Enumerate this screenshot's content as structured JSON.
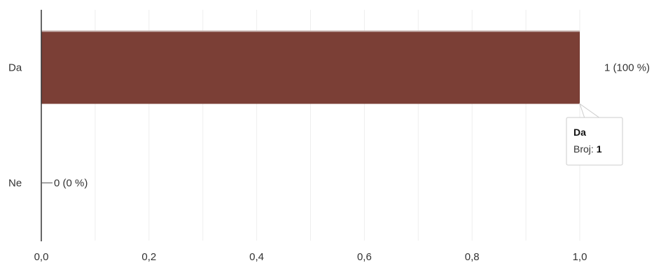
{
  "chart_data": {
    "type": "bar",
    "orientation": "horizontal",
    "categories": [
      "Da",
      "Ne"
    ],
    "values": [
      1,
      0
    ],
    "data_labels": [
      "1 (100 %)",
      "0 (0 %)"
    ],
    "xlim": [
      0,
      1
    ],
    "x_ticks": [
      0,
      0.2,
      0.4,
      0.6,
      0.8,
      1.0
    ],
    "x_tick_labels": [
      "0,0",
      "0,2",
      "0,4",
      "0,6",
      "0,8",
      "1,0"
    ],
    "grid": true,
    "colors": {
      "bar": "#7b3f36",
      "grid": "#eeeeee",
      "axis": "#333333"
    },
    "tooltip": {
      "category": "Da",
      "label": "Broj",
      "separator": ": ",
      "value": "1"
    }
  }
}
